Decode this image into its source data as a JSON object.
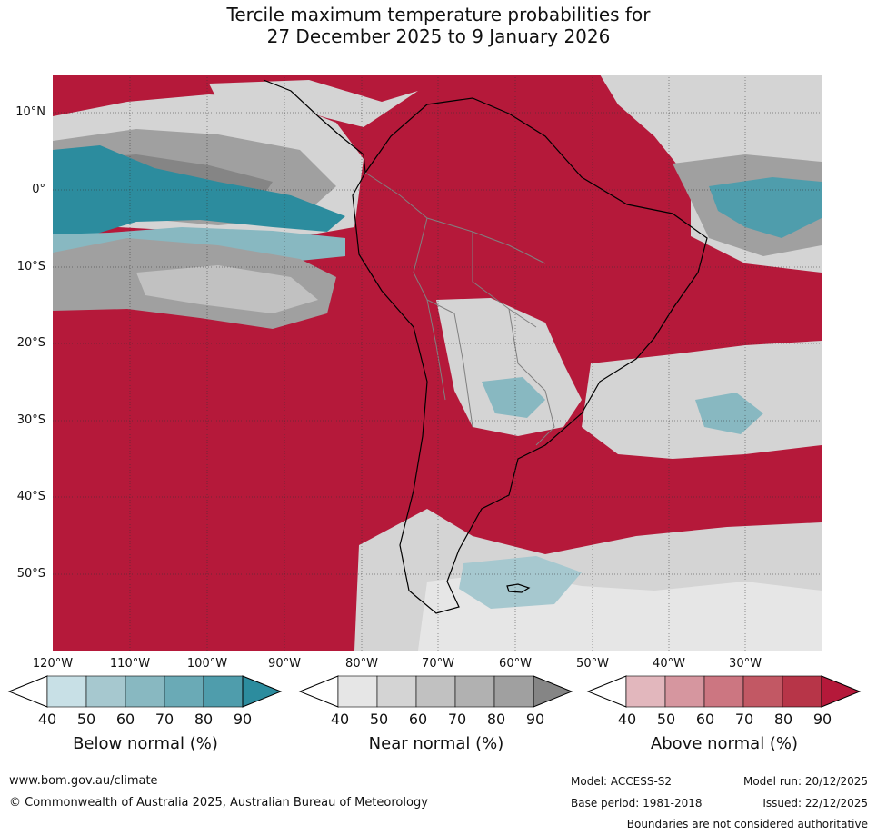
{
  "title": {
    "line1": "Tercile maximum temperature probabilities for",
    "line2": "27 December 2025 to 9 January 2026"
  },
  "map": {
    "lat_labels": [
      "10°N",
      "0°",
      "10°S",
      "20°S",
      "30°S",
      "40°S",
      "50°S"
    ],
    "lon_labels": [
      "120°W",
      "110°W",
      "100°W",
      "90°W",
      "80°W",
      "70°W",
      "60°W",
      "50°W",
      "40°W",
      "30°W"
    ],
    "ocean_fill": "#b5193a"
  },
  "colorbars": [
    {
      "title": "Below normal (%)",
      "ticks": [
        "40",
        "50",
        "60",
        "70",
        "80",
        "90"
      ],
      "colors": [
        "#ffffff",
        "#c8e0e6",
        "#a6c8cf",
        "#88b8c1",
        "#6aaab6",
        "#4f9dac",
        "#2c8c9e"
      ]
    },
    {
      "title": "Near normal (%)",
      "ticks": [
        "40",
        "50",
        "60",
        "70",
        "80",
        "90"
      ],
      "colors": [
        "#ffffff",
        "#e6e6e6",
        "#d4d4d4",
        "#c1c1c1",
        "#b1b1b1",
        "#a0a0a0",
        "#858585"
      ]
    },
    {
      "title": "Above normal (%)",
      "ticks": [
        "40",
        "50",
        "60",
        "70",
        "80",
        "90"
      ],
      "colors": [
        "#ffffff",
        "#e2b7bd",
        "#d6969f",
        "#cc7681",
        "#c25864",
        "#b73548",
        "#b5193a"
      ]
    }
  ],
  "footer": {
    "website": "www.bom.gov.au/climate",
    "copyright": "© Commonwealth of Australia 2025, Australian Bureau of Meteorology",
    "model": "Model: ACCESS-S2",
    "base_period": "Base period: 1981-2018",
    "model_run": "Model run: 20/12/2025",
    "issued": "Issued: 22/12/2025",
    "disclaimer": "Boundaries are not considered authoritative"
  }
}
